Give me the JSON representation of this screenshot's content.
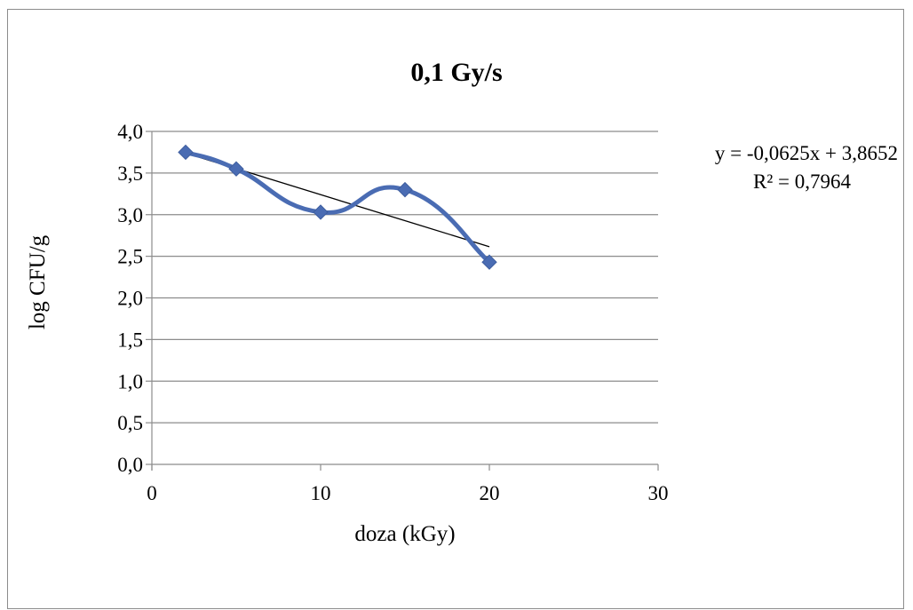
{
  "chart_data": {
    "type": "scatter",
    "title": "0,1 Gy/s",
    "xlabel": "doza (kGy)",
    "ylabel": "log CFU/g",
    "xlim": [
      0,
      30
    ],
    "ylim": [
      0,
      4
    ],
    "x_ticks": [
      0,
      10,
      20,
      30
    ],
    "y_ticks": [
      "0,0",
      "0,5",
      "1,0",
      "1,5",
      "2,0",
      "2,5",
      "3,0",
      "3,5",
      "4,0"
    ],
    "grid": "horizontal",
    "legend": "none",
    "series": [
      {
        "points": [
          {
            "x": 2,
            "y": 3.75
          },
          {
            "x": 5,
            "y": 3.55
          },
          {
            "x": 10,
            "y": 3.03
          },
          {
            "x": 15,
            "y": 3.3
          },
          {
            "x": 20,
            "y": 2.43
          }
        ],
        "smoothed": true,
        "color": "#4a6cb3",
        "marker": "diamond"
      }
    ],
    "trendline": {
      "type": "linear",
      "slope": -0.0625,
      "intercept": 3.8652,
      "x_range": [
        2,
        20
      ],
      "color": "#000000",
      "equation": "y = -0,0625x + 3,8652",
      "r_squared": "R² = 0,7964"
    }
  }
}
